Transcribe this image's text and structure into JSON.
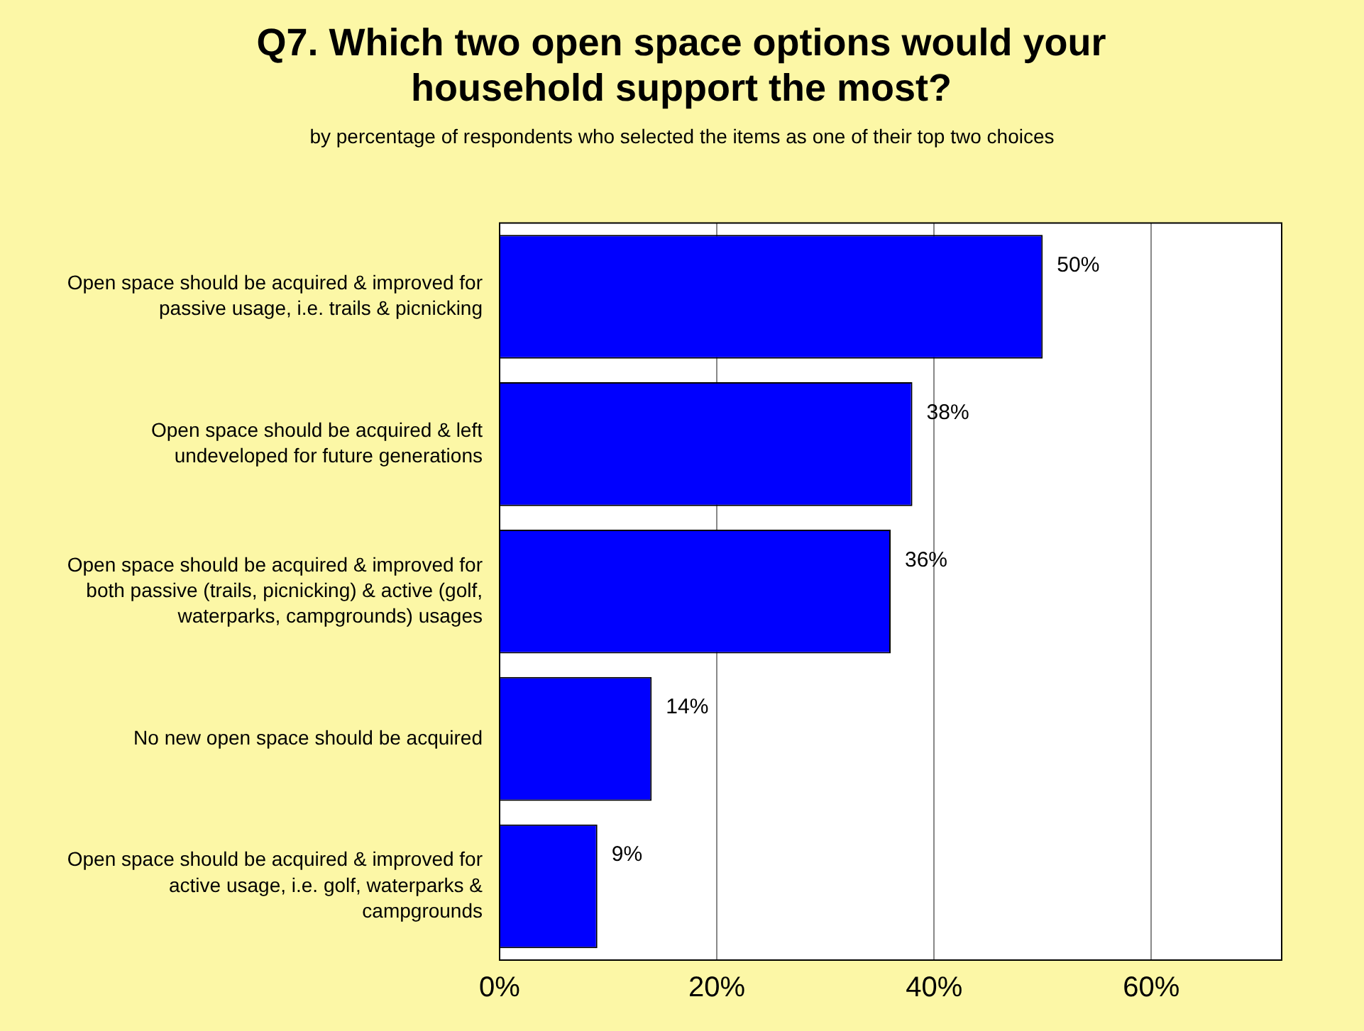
{
  "chart_data": {
    "type": "bar",
    "orientation": "horizontal",
    "title": "Q7. Which two open space options would your household support the most?",
    "subtitle": "by percentage of respondents who selected the items as one of their top two choices",
    "categories": [
      "Open space should be acquired & improved for passive usage, i.e. trails & picnicking",
      "Open space should be acquired & left undeveloped for future generations",
      "Open space should be acquired & improved for both passive (trails, picnicking) & active (golf, waterparks, campgrounds) usages",
      "No new open space should be acquired",
      "Open space should be acquired & improved for active usage, i.e. golf, waterparks & campgrounds"
    ],
    "values": [
      50,
      38,
      36,
      14,
      9
    ],
    "value_labels": [
      "50%",
      "38%",
      "36%",
      "14%",
      "9%"
    ],
    "color": "#0000ff",
    "xlim": [
      0,
      72
    ],
    "xticks": [
      {
        "value": 0,
        "label": "0%"
      },
      {
        "value": 20,
        "label": "20%"
      },
      {
        "value": 40,
        "label": "40%"
      },
      {
        "value": 60,
        "label": "60%"
      }
    ],
    "grid": "x",
    "legend": false
  }
}
